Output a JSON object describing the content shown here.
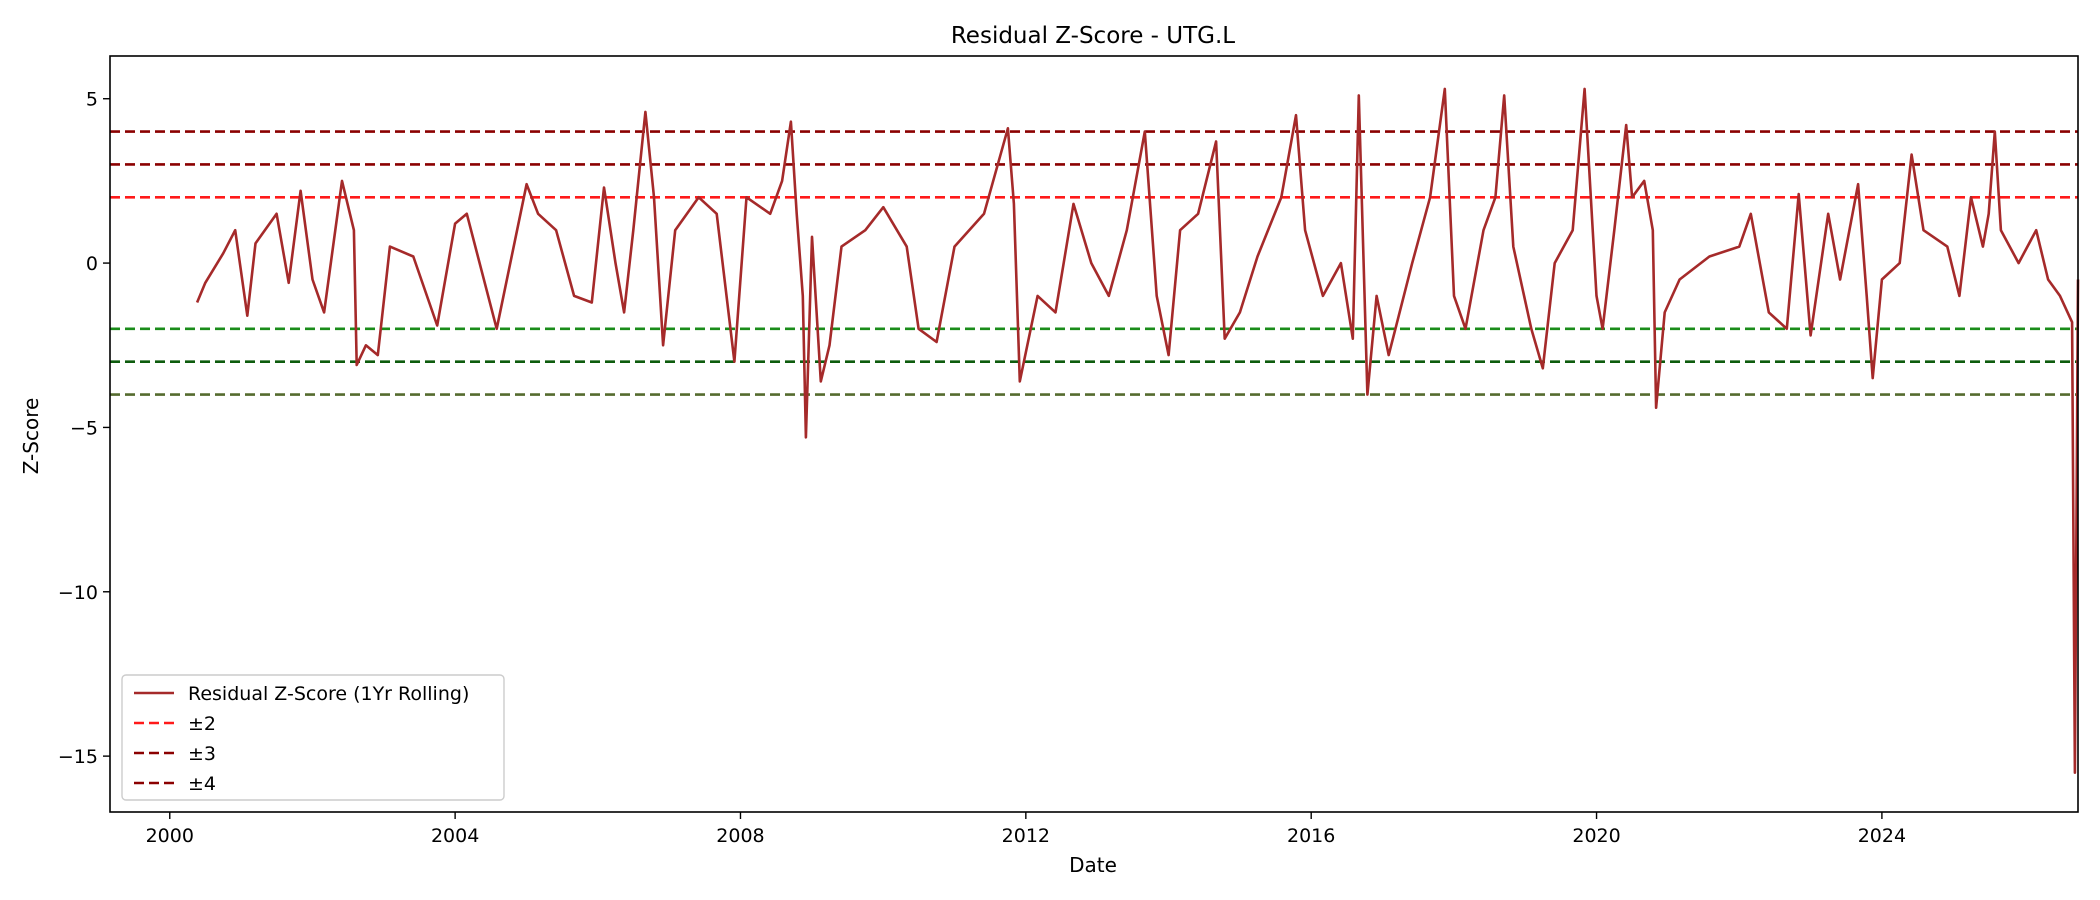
{
  "chart_data": {
    "type": "line",
    "title": "Residual Z-Score - UTG.L",
    "xlabel": "Date",
    "ylabel": "Z-Score",
    "xlim": [
      "1999-03-01",
      "2026-10-01"
    ],
    "ylim": [
      -16.7,
      6.3
    ],
    "x_ticks": [
      "2000",
      "2004",
      "2008",
      "2012",
      "2016",
      "2020",
      "2024"
    ],
    "y_ticks": [
      5,
      0,
      -5,
      -10,
      -15
    ],
    "y_tick_labels": [
      "5",
      "0",
      "−5",
      "−10",
      "−15"
    ],
    "grid": false,
    "legend": {
      "location": "lower-left",
      "entries": [
        "Residual Z-Score (1Yr Rolling)",
        "±2",
        "±3",
        "±4"
      ]
    },
    "series": [
      {
        "name": "Residual Z-Score (1Yr Rolling)",
        "color": "#a52a2a",
        "points": [
          [
            "2000-05-20",
            -1.2
          ],
          [
            "2000-07-01",
            -0.6
          ],
          [
            "2000-10-01",
            0.3
          ],
          [
            "2000-12-01",
            1.0
          ],
          [
            "2001-02-01",
            -1.6
          ],
          [
            "2001-03-15",
            0.6
          ],
          [
            "2001-07-01",
            1.5
          ],
          [
            "2001-09-01",
            -0.6
          ],
          [
            "2001-11-01",
            2.2
          ],
          [
            "2002-01-01",
            -0.5
          ],
          [
            "2002-03-01",
            -1.5
          ],
          [
            "2002-06-01",
            2.5
          ],
          [
            "2002-08-01",
            1.0
          ],
          [
            "2002-08-15",
            -3.1
          ],
          [
            "2002-10-01",
            -2.5
          ],
          [
            "2002-12-01",
            -2.8
          ],
          [
            "2003-02-01",
            0.5
          ],
          [
            "2003-06-01",
            0.2
          ],
          [
            "2003-10-01",
            -1.9
          ],
          [
            "2004-01-01",
            1.2
          ],
          [
            "2004-03-01",
            1.5
          ],
          [
            "2004-08-01",
            -2.0
          ],
          [
            "2005-01-01",
            2.4
          ],
          [
            "2005-03-01",
            1.5
          ],
          [
            "2005-06-01",
            1.0
          ],
          [
            "2005-09-01",
            -1.0
          ],
          [
            "2005-12-01",
            -1.2
          ],
          [
            "2006-02-01",
            2.3
          ],
          [
            "2006-04-01",
            0.0
          ],
          [
            "2006-05-15",
            -1.5
          ],
          [
            "2006-07-01",
            1.0
          ],
          [
            "2006-09-01",
            4.6
          ],
          [
            "2006-10-15",
            2.0
          ],
          [
            "2006-12-01",
            -2.5
          ],
          [
            "2007-02-01",
            1.0
          ],
          [
            "2007-06-01",
            2.0
          ],
          [
            "2007-09-01",
            1.5
          ],
          [
            "2007-12-01",
            -3.0
          ],
          [
            "2008-02-01",
            2.0
          ],
          [
            "2008-06-01",
            1.5
          ],
          [
            "2008-08-01",
            2.5
          ],
          [
            "2008-09-15",
            4.3
          ],
          [
            "2008-10-15",
            1.5
          ],
          [
            "2008-11-15",
            -1.0
          ],
          [
            "2008-12-01",
            -5.3
          ],
          [
            "2009-01-01",
            0.8
          ],
          [
            "2009-02-15",
            -3.6
          ],
          [
            "2009-04-01",
            -2.5
          ],
          [
            "2009-06-01",
            0.5
          ],
          [
            "2009-10-01",
            1.0
          ],
          [
            "2010-01-01",
            1.7
          ],
          [
            "2010-05-01",
            0.5
          ],
          [
            "2010-07-01",
            -2.0
          ],
          [
            "2010-10-01",
            -2.4
          ],
          [
            "2011-01-01",
            0.5
          ],
          [
            "2011-06-01",
            1.5
          ],
          [
            "2011-10-01",
            4.1
          ],
          [
            "2011-11-01",
            1.8
          ],
          [
            "2011-12-01",
            -3.6
          ],
          [
            "2012-03-01",
            -1.0
          ],
          [
            "2012-06-01",
            -1.5
          ],
          [
            "2012-09-01",
            1.8
          ],
          [
            "2012-12-01",
            0.0
          ],
          [
            "2013-03-01",
            -1.0
          ],
          [
            "2013-06-01",
            1.0
          ],
          [
            "2013-09-01",
            4.0
          ],
          [
            "2013-11-01",
            -1.0
          ],
          [
            "2014-01-01",
            -2.8
          ],
          [
            "2014-03-01",
            1.0
          ],
          [
            "2014-06-01",
            1.5
          ],
          [
            "2014-09-01",
            3.7
          ],
          [
            "2014-10-15",
            -2.3
          ],
          [
            "2015-01-01",
            -1.5
          ],
          [
            "2015-04-01",
            0.2
          ],
          [
            "2015-08-01",
            2.0
          ],
          [
            "2015-10-15",
            4.5
          ],
          [
            "2015-12-01",
            1.0
          ],
          [
            "2016-03-01",
            -1.0
          ],
          [
            "2016-06-01",
            0.0
          ],
          [
            "2016-08-01",
            -2.3
          ],
          [
            "2016-09-01",
            5.1
          ],
          [
            "2016-10-15",
            -4.0
          ],
          [
            "2016-12-01",
            -1.0
          ],
          [
            "2017-02-01",
            -2.8
          ],
          [
            "2017-06-01",
            0.0
          ],
          [
            "2017-09-01",
            2.0
          ],
          [
            "2017-11-15",
            5.3
          ],
          [
            "2018-01-01",
            -1.0
          ],
          [
            "2018-03-01",
            -2.0
          ],
          [
            "2018-06-01",
            1.0
          ],
          [
            "2018-08-01",
            2.0
          ],
          [
            "2018-09-15",
            5.1
          ],
          [
            "2018-11-01",
            0.5
          ],
          [
            "2019-02-01",
            -2.0
          ],
          [
            "2019-04-01",
            -3.2
          ],
          [
            "2019-06-01",
            0.0
          ],
          [
            "2019-09-01",
            1.0
          ],
          [
            "2019-11-01",
            5.3
          ],
          [
            "2020-01-01",
            -1.0
          ],
          [
            "2020-02-01",
            -2.0
          ],
          [
            "2020-04-01",
            1.0
          ],
          [
            "2020-06-01",
            4.2
          ],
          [
            "2020-07-01",
            2.0
          ],
          [
            "2020-09-01",
            2.5
          ],
          [
            "2020-10-15",
            1.0
          ],
          [
            "2020-11-01",
            -4.4
          ],
          [
            "2020-12-15",
            -1.5
          ],
          [
            "2021-03-01",
            -0.5
          ],
          [
            "2021-08-01",
            0.2
          ],
          [
            "2022-01-01",
            0.5
          ],
          [
            "2022-03-01",
            1.5
          ],
          [
            "2022-06-01",
            -1.5
          ],
          [
            "2022-09-01",
            -2.0
          ],
          [
            "2022-11-01",
            2.1
          ],
          [
            "2023-01-01",
            -2.2
          ],
          [
            "2023-04-01",
            1.5
          ],
          [
            "2023-06-01",
            -0.5
          ],
          [
            "2023-09-01",
            2.4
          ],
          [
            "2023-10-15",
            -1.0
          ],
          [
            "2023-11-15",
            -3.5
          ],
          [
            "2024-01-01",
            -0.5
          ],
          [
            "2024-04-01",
            0.0
          ],
          [
            "2024-06-01",
            3.3
          ],
          [
            "2024-08-01",
            1.0
          ],
          [
            "2024-12-01",
            0.5
          ],
          [
            "2025-02-01",
            -1.0
          ],
          [
            "2025-04-01",
            2.0
          ],
          [
            "2025-06-01",
            0.5
          ],
          [
            "2025-07-01",
            1.5
          ],
          [
            "2025-08-01",
            4.0
          ],
          [
            "2025-09-01",
            1.0
          ],
          [
            "2025-12-01",
            0.0
          ],
          [
            "2026-03-01",
            1.0
          ],
          [
            "2026-05-01",
            -0.5
          ],
          [
            "2026-07-01",
            -1.0
          ],
          [
            "2026-09-01",
            -1.8
          ],
          [
            "2026-09-15",
            -15.5
          ],
          [
            "2026-10-01",
            -0.5
          ]
        ]
      }
    ],
    "thresholds": [
      {
        "value": 2,
        "color": "#ff1a1a",
        "group": "±2"
      },
      {
        "value": 3,
        "color": "#8b0000",
        "group": "±3"
      },
      {
        "value": 4,
        "color": "#8b0000",
        "group": "±4"
      },
      {
        "value": -2,
        "color": "#1a8c1a",
        "group": "±2"
      },
      {
        "value": -3,
        "color": "#0d5c0d",
        "group": "±3"
      },
      {
        "value": -4,
        "color": "#556b2f",
        "group": "±4"
      }
    ],
    "legend_colors": [
      "#a52a2a",
      "#ff1a1a",
      "#8b0000",
      "#8b0000"
    ]
  }
}
